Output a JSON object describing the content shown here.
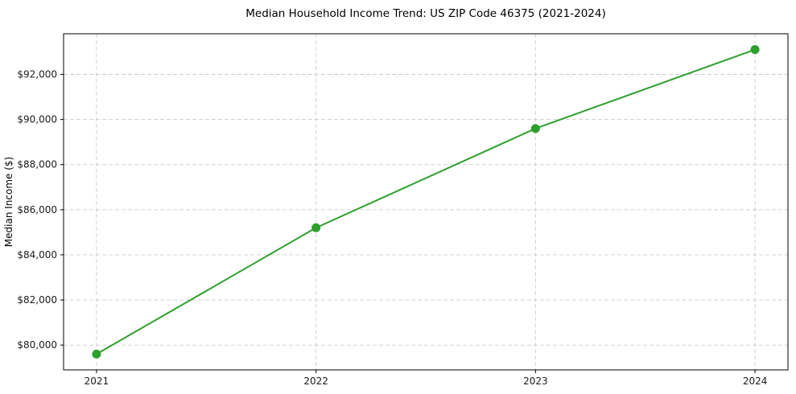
{
  "chart_data": {
    "type": "line",
    "title": "Median Household Income Trend: US ZIP Code 46375 (2021-2024)",
    "xlabel": "",
    "ylabel": "Median Income ($)",
    "x": [
      2021,
      2022,
      2023,
      2024
    ],
    "x_tick_labels": [
      "2021",
      "2022",
      "2023",
      "2024"
    ],
    "y_ticks": [
      80000,
      82000,
      84000,
      86000,
      88000,
      90000,
      92000
    ],
    "y_tick_labels": [
      "$80,000",
      "$82,000",
      "$84,000",
      "$86,000",
      "$88,000",
      "$90,000",
      "$92,000"
    ],
    "series": [
      {
        "name": "Median Household Income",
        "values": [
          79600,
          85200,
          89600,
          93100
        ],
        "color": "#2ca02c",
        "marker": "circle"
      }
    ],
    "xlim": [
      2020.85,
      2024.15
    ],
    "ylim": [
      78900,
      93800
    ],
    "grid": true,
    "grid_style": "dashed",
    "grid_color": "#cccccc",
    "axis_color": "#000000",
    "legend_position": "none"
  }
}
